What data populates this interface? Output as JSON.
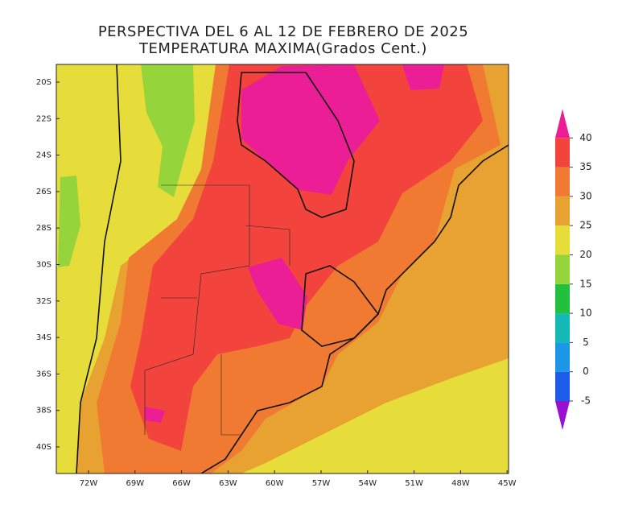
{
  "title_lines": [
    "PERSPECTIVA DEL 6 AL 12 DE FEBRERO DE 2025",
    "TEMPERATURA MAXIMA(Grados Cent.)"
  ],
  "map": {
    "lat_labels": [
      "20S",
      "22S",
      "24S",
      "26S",
      "28S",
      "30S",
      "32S",
      "34S",
      "36S",
      "38S",
      "40S"
    ],
    "lon_labels": [
      "72W",
      "69W",
      "66W",
      "63W",
      "60W",
      "57W",
      "54W",
      "51W",
      "48W",
      "45W"
    ]
  },
  "colorbar": {
    "levels": [
      -5,
      0,
      5,
      10,
      15,
      20,
      25,
      30,
      35,
      40
    ],
    "colors": [
      "#9a10d0",
      "#1c5ce8",
      "#1c96e6",
      "#14b8b4",
      "#22c03c",
      "#96d43c",
      "#e6dc3a",
      "#e8a232",
      "#f07a32",
      "#f2443c",
      "#ec1e96"
    ]
  }
}
